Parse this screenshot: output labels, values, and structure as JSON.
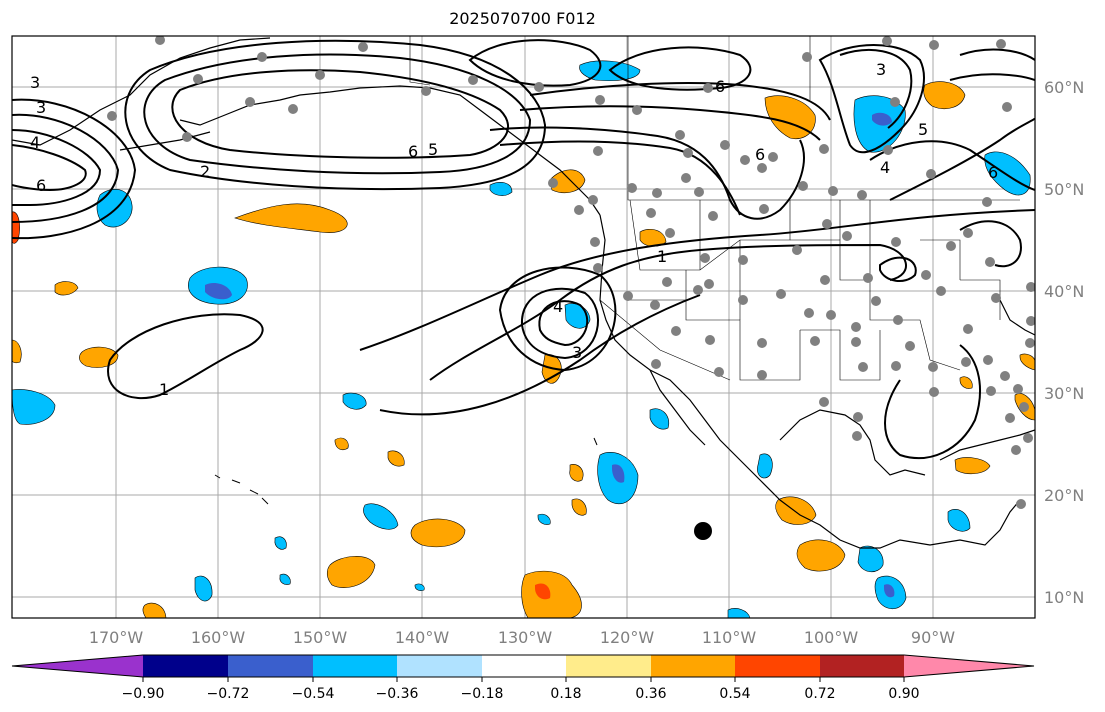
{
  "title": "2025070700 F012",
  "map": {
    "lon_labels": [
      "170°W",
      "160°W",
      "150°W",
      "140°W",
      "130°W",
      "120°W",
      "110°W",
      "100°W",
      "90°W"
    ],
    "lat_labels": [
      "60°N",
      "50°N",
      "40°N",
      "30°N",
      "20°N",
      "10°N"
    ],
    "contour_labels": [
      "1",
      "1",
      "2",
      "3",
      "3",
      "3",
      "3",
      "4",
      "4",
      "4",
      "5",
      "5",
      "6",
      "6",
      "6",
      "6",
      "6"
    ],
    "colors": {
      "ocean": "#ffffff",
      "grid": "#a0a0a0",
      "coast": "#000000",
      "station": "#808080",
      "marker": "#000000"
    }
  },
  "colorbar": {
    "tick_labels": [
      "−0.90",
      "−0.72",
      "−0.54",
      "−0.36",
      "−0.18",
      "0.18",
      "0.36",
      "0.54",
      "0.72",
      "0.90"
    ],
    "bins": [
      "#9a32cd",
      "#00008b",
      "#3a5fcd",
      "#00bfff",
      "#b0e2ff",
      "#ffffff",
      "#ffec8b",
      "#ffa500",
      "#ff4500",
      "#b22222",
      "#ff88aa"
    ]
  }
}
